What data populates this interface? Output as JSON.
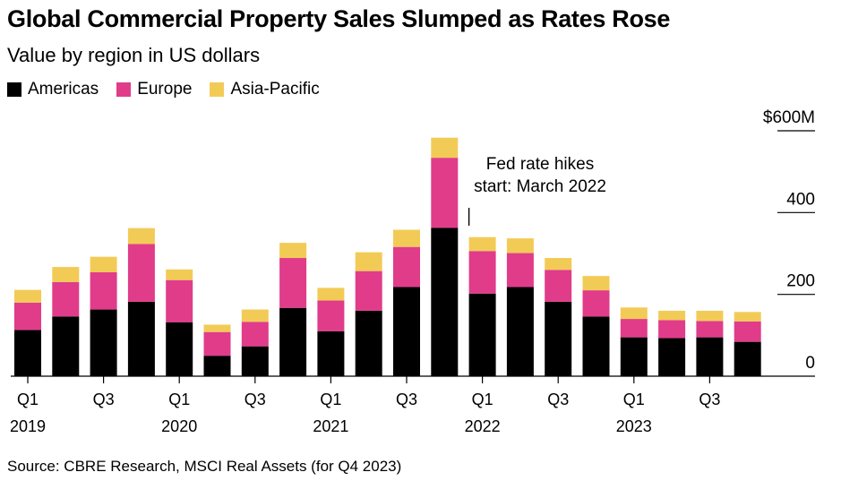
{
  "title": "Global Commercial Property Sales Slumped as Rates Rose",
  "subtitle": "Value by region in US dollars",
  "source": "Source: CBRE Research, MSCI Real Assets (for Q4 2023)",
  "colors": {
    "Americas": "#000000",
    "Europe": "#e03c8a",
    "Asia-Pacific": "#f2cb57"
  },
  "chart_data": {
    "type": "bar",
    "stacked": true,
    "categories": [
      "Q1 2019",
      "Q2 2019",
      "Q3 2019",
      "Q4 2019",
      "Q1 2020",
      "Q2 2020",
      "Q3 2020",
      "Q4 2020",
      "Q1 2021",
      "Q2 2021",
      "Q3 2021",
      "Q4 2021",
      "Q1 2022",
      "Q2 2022",
      "Q3 2022",
      "Q4 2022",
      "Q1 2023",
      "Q2 2023",
      "Q3 2023",
      "Q4 2023"
    ],
    "series": [
      {
        "name": "Americas",
        "values": [
          113,
          146,
          163,
          182,
          132,
          50,
          73,
          167,
          110,
          160,
          218,
          363,
          202,
          218,
          182,
          146,
          95,
          93,
          95,
          84
        ]
      },
      {
        "name": "Europe",
        "values": [
          67,
          84,
          91,
          141,
          103,
          58,
          60,
          122,
          75,
          97,
          98,
          171,
          104,
          83,
          78,
          64,
          45,
          44,
          40,
          50
        ]
      },
      {
        "name": "Asia-Pacific",
        "values": [
          31,
          37,
          38,
          39,
          26,
          18,
          30,
          37,
          31,
          46,
          42,
          49,
          34,
          36,
          29,
          35,
          28,
          23,
          25,
          23
        ]
      }
    ],
    "ylim": [
      0,
      600
    ],
    "yticks": [
      {
        "value": 0,
        "label": "0"
      },
      {
        "value": 200,
        "label": "200"
      },
      {
        "value": 400,
        "label": "400"
      },
      {
        "value": 600,
        "label": "$600M"
      }
    ],
    "xtick_labels": [
      {
        "index": 0,
        "quarter": "Q1",
        "year": "2019"
      },
      {
        "index": 2,
        "quarter": "Q3",
        "year": ""
      },
      {
        "index": 4,
        "quarter": "Q1",
        "year": "2020"
      },
      {
        "index": 6,
        "quarter": "Q3",
        "year": ""
      },
      {
        "index": 8,
        "quarter": "Q1",
        "year": "2021"
      },
      {
        "index": 10,
        "quarter": "Q3",
        "year": ""
      },
      {
        "index": 12,
        "quarter": "Q1",
        "year": "2022"
      },
      {
        "index": 14,
        "quarter": "Q3",
        "year": ""
      },
      {
        "index": 16,
        "quarter": "Q1",
        "year": "2023"
      },
      {
        "index": 18,
        "quarter": "Q3",
        "year": ""
      }
    ],
    "annotation": {
      "lines": [
        "Fed rate hikes",
        "start: March 2022"
      ],
      "index": 12
    },
    "legend_placement": "top-left",
    "grid": false
  }
}
